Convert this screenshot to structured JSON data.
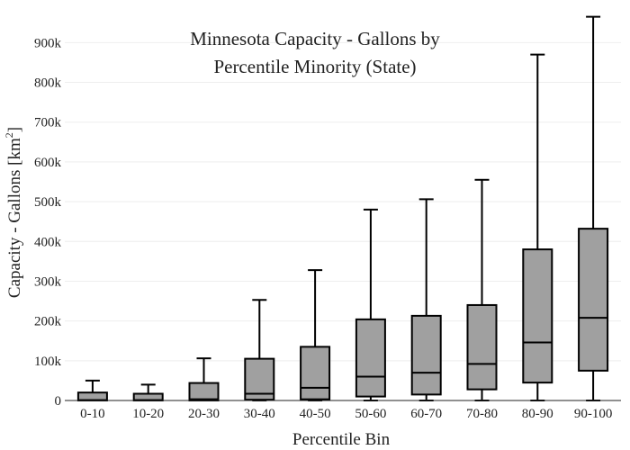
{
  "chart_data": {
    "type": "box",
    "title_lines": [
      "Minnesota Capacity - Gallons by",
      "Percentile Minority (State)"
    ],
    "xlabel": "Percentile Bin",
    "ylabel_main": "Capacity - Gallons  [km",
    "ylabel_sup": "2",
    "ylabel_end": "]",
    "ylim": [
      0,
      980000
    ],
    "yticks": [
      0,
      100000,
      200000,
      300000,
      400000,
      500000,
      600000,
      700000,
      800000,
      900000
    ],
    "ytick_labels": [
      "0",
      "100k",
      "200k",
      "300k",
      "400k",
      "500k",
      "600k",
      "700k",
      "800k",
      "900k"
    ],
    "grid": true,
    "categories": [
      "0-10",
      "10-20",
      "20-30",
      "30-40",
      "40-50",
      "50-60",
      "60-70",
      "70-80",
      "80-90",
      "90-100"
    ],
    "boxes": [
      {
        "min": 0,
        "q1": 0,
        "median": 1000,
        "q3": 20000,
        "max": 50000
      },
      {
        "min": 0,
        "q1": 0,
        "median": 1000,
        "q3": 17000,
        "max": 40000
      },
      {
        "min": 0,
        "q1": 0,
        "median": 3000,
        "q3": 44000,
        "max": 106000
      },
      {
        "min": 0,
        "q1": 2000,
        "median": 17000,
        "q3": 105000,
        "max": 253000
      },
      {
        "min": 0,
        "q1": 3000,
        "median": 32000,
        "q3": 135000,
        "max": 328000
      },
      {
        "min": 0,
        "q1": 10000,
        "median": 60000,
        "q3": 204000,
        "max": 480000
      },
      {
        "min": 0,
        "q1": 15000,
        "median": 70000,
        "q3": 213000,
        "max": 506000
      },
      {
        "min": 0,
        "q1": 28000,
        "median": 92000,
        "q3": 240000,
        "max": 555000
      },
      {
        "min": 0,
        "q1": 45000,
        "median": 146000,
        "q3": 380000,
        "max": 870000
      },
      {
        "min": 0,
        "q1": 75000,
        "median": 208000,
        "q3": 432000,
        "max": 965000
      }
    ]
  }
}
